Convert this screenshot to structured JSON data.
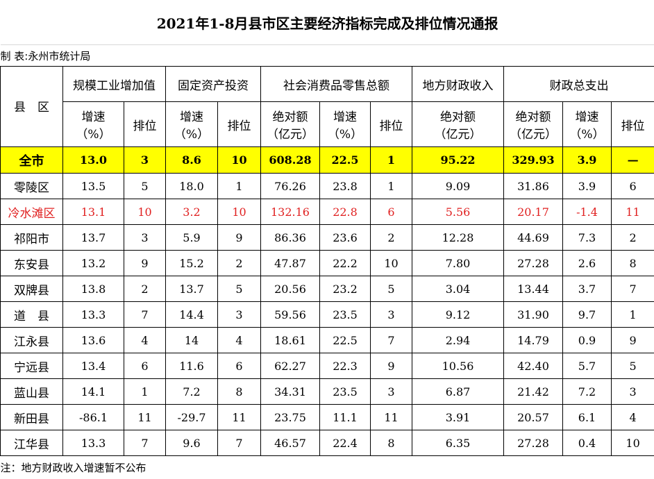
{
  "title": "2021年1-8月县市区主要经济指标完成及排位情况通报",
  "maker": "制 表:永州市统计局",
  "table": {
    "corner": "县　区",
    "groups": [
      "规模工业增加值",
      "固定资产投资",
      "社会消费品零售总额",
      "地方财政收入",
      "财政总支出"
    ],
    "subheaders": [
      "增速\n（%）",
      "排位",
      "增速\n（%）",
      "排位",
      "绝对额\n（亿元）",
      "增速\n（%）",
      "排位",
      "绝对额\n（亿元）",
      "绝对额\n（亿元）",
      "增速\n（%）",
      "排位"
    ],
    "rows": [
      [
        "全市",
        "13.0",
        "3",
        "8.6",
        "10",
        "608.28",
        "22.5",
        "1",
        "95.22",
        "329.93",
        "3.9",
        "—"
      ],
      [
        "零陵区",
        "13.5",
        "5",
        "18.0",
        "1",
        "76.26",
        "23.8",
        "1",
        "9.09",
        "31.86",
        "3.9",
        "6"
      ],
      [
        "冷水滩区",
        "13.1",
        "10",
        "3.2",
        "10",
        "132.16",
        "22.8",
        "6",
        "5.56",
        "20.17",
        "-1.4",
        "11"
      ],
      [
        "祁阳市",
        "13.7",
        "3",
        "5.9",
        "9",
        "86.36",
        "23.6",
        "2",
        "12.28",
        "44.69",
        "7.3",
        "2"
      ],
      [
        "东安县",
        "13.2",
        "9",
        "15.2",
        "2",
        "47.87",
        "22.2",
        "10",
        "7.80",
        "27.28",
        "2.6",
        "8"
      ],
      [
        "双牌县",
        "13.8",
        "2",
        "13.7",
        "5",
        "20.56",
        "23.2",
        "5",
        "3.04",
        "13.44",
        "3.7",
        "7"
      ],
      [
        "道　县",
        "13.3",
        "7",
        "14.4",
        "3",
        "59.56",
        "23.5",
        "3",
        "9.12",
        "31.90",
        "9.7",
        "1"
      ],
      [
        "江永县",
        "13.6",
        "4",
        "14",
        "4",
        "18.61",
        "22.5",
        "7",
        "2.94",
        "14.79",
        "0.9",
        "9"
      ],
      [
        "宁远县",
        "13.4",
        "6",
        "11.6",
        "6",
        "62.27",
        "22.3",
        "9",
        "10.56",
        "42.40",
        "5.7",
        "5"
      ],
      [
        "蓝山县",
        "14.1",
        "1",
        "7.2",
        "8",
        "34.31",
        "23.5",
        "3",
        "6.87",
        "21.42",
        "7.2",
        "3"
      ],
      [
        "新田县",
        "-86.1",
        "11",
        "-29.7",
        "11",
        "23.75",
        "11.1",
        "11",
        "3.91",
        "20.57",
        "6.1",
        "4"
      ],
      [
        "江华县",
        "13.3",
        "7",
        "9.6",
        "7",
        "46.57",
        "22.4",
        "8",
        "6.35",
        "27.28",
        "0.4",
        "10"
      ]
    ]
  },
  "note": "注：地方财政收入增速暂不公布"
}
